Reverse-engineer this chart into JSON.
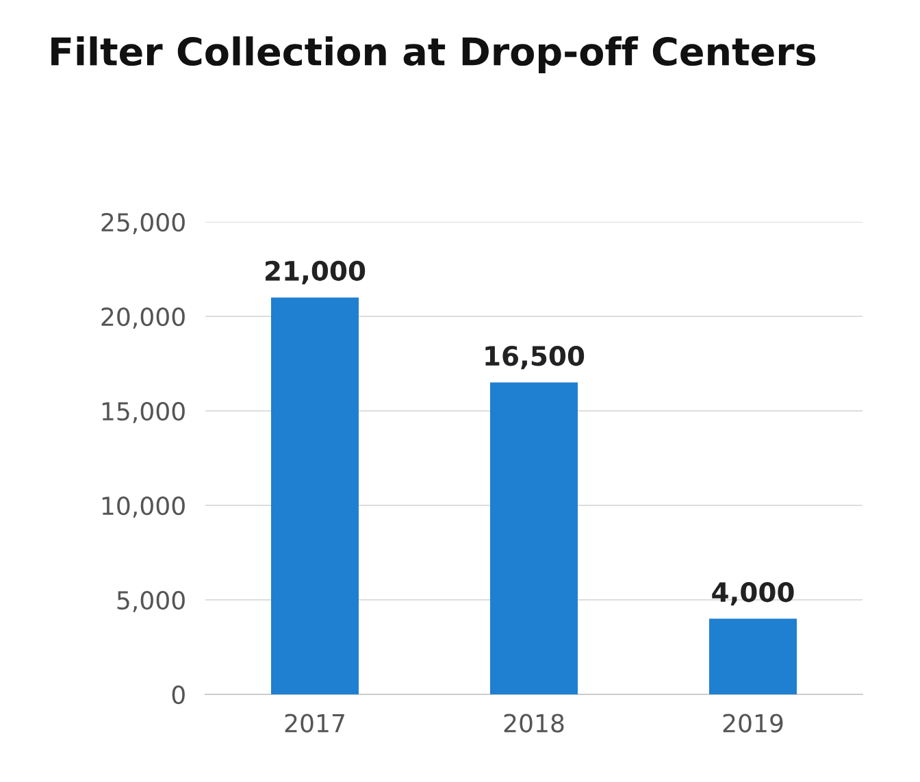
{
  "chart_data": {
    "type": "bar",
    "title": "Filter Collection at Drop-off Centers",
    "categories": [
      "2017",
      "2018",
      "2019"
    ],
    "values": [
      21000,
      16500,
      4000
    ],
    "color": "#1f7fd0",
    "value_labels": [
      "21,000",
      "16,500",
      "4,000"
    ],
    "ylim": [
      0,
      25000
    ],
    "yticks": [
      {
        "value": 0,
        "label": "0"
      },
      {
        "value": 5000,
        "label": "5,000"
      },
      {
        "value": 10000,
        "label": "10,000"
      },
      {
        "value": 15000,
        "label": "15,000"
      },
      {
        "value": 20000,
        "label": "20,000"
      },
      {
        "value": 25000,
        "label": "25,000"
      }
    ],
    "grid": "y"
  }
}
